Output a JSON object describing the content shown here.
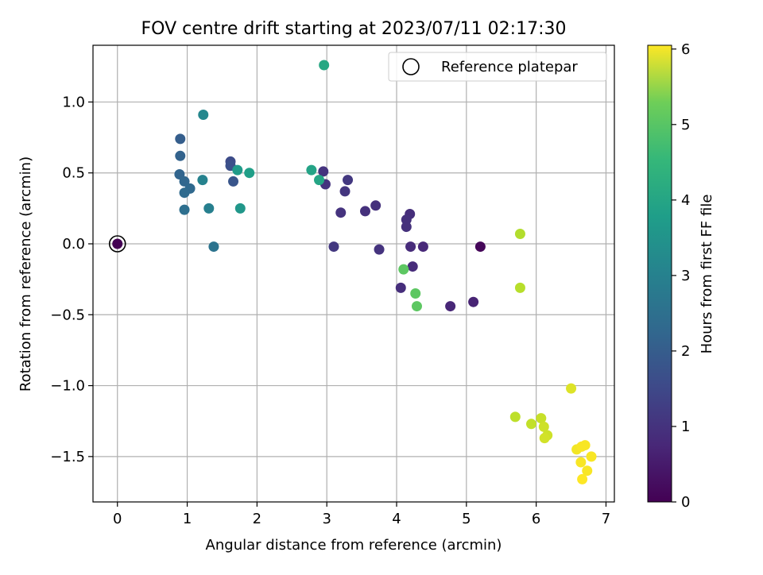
{
  "chart_data": {
    "type": "scatter",
    "title": "FOV centre drift starting at 2023/07/11 02:17:30",
    "xlabel": "Angular distance from reference (arcmin)",
    "ylabel": "Rotation from reference (arcmin)",
    "xlim": [
      -0.35,
      7.12
    ],
    "ylim": [
      -1.82,
      1.4
    ],
    "x_ticks": [
      0,
      1,
      2,
      3,
      4,
      5,
      6,
      7
    ],
    "x_tick_labels": [
      "0",
      "1",
      "2",
      "3",
      "4",
      "5",
      "6",
      "7"
    ],
    "y_ticks": [
      -1.5,
      -1.0,
      -0.5,
      0.0,
      0.5,
      1.0
    ],
    "y_tick_labels": [
      "−1.5",
      "−1.0",
      "−0.5",
      "0.0",
      "0.5",
      "1.0"
    ],
    "grid": true,
    "legend": {
      "position": "top-right",
      "entries": [
        "Reference platepar"
      ]
    },
    "reference_point": {
      "x": 0,
      "y": 0
    },
    "colorbar": {
      "label": "Hours from first FF file",
      "colormap": "viridis",
      "range": [
        0,
        6.05
      ],
      "ticks": [
        0,
        1,
        2,
        3,
        4,
        5,
        6
      ],
      "tick_labels": [
        "0",
        "1",
        "2",
        "3",
        "4",
        "5",
        "6"
      ]
    },
    "points": [
      {
        "x": 0.0,
        "y": 0.0,
        "hours": 0.0
      },
      {
        "x": 5.2,
        "y": -0.02,
        "hours": 0.1
      },
      {
        "x": 5.1,
        "y": -0.41,
        "hours": 0.6
      },
      {
        "x": 4.77,
        "y": -0.44,
        "hours": 0.65
      },
      {
        "x": 4.38,
        "y": -0.02,
        "hours": 0.7
      },
      {
        "x": 4.2,
        "y": -0.02,
        "hours": 0.75
      },
      {
        "x": 4.23,
        "y": -0.16,
        "hours": 0.75
      },
      {
        "x": 4.06,
        "y": -0.31,
        "hours": 0.8
      },
      {
        "x": 4.19,
        "y": 0.21,
        "hours": 0.8
      },
      {
        "x": 4.14,
        "y": 0.17,
        "hours": 0.85
      },
      {
        "x": 4.14,
        "y": 0.12,
        "hours": 0.85
      },
      {
        "x": 3.7,
        "y": 0.27,
        "hours": 0.85
      },
      {
        "x": 3.55,
        "y": 0.23,
        "hours": 0.85
      },
      {
        "x": 3.75,
        "y": -0.04,
        "hours": 0.9
      },
      {
        "x": 3.2,
        "y": 0.22,
        "hours": 0.9
      },
      {
        "x": 2.95,
        "y": 0.51,
        "hours": 0.9
      },
      {
        "x": 2.98,
        "y": 0.42,
        "hours": 0.9
      },
      {
        "x": 3.26,
        "y": 0.37,
        "hours": 0.95
      },
      {
        "x": 3.3,
        "y": 0.45,
        "hours": 1.0
      },
      {
        "x": 3.1,
        "y": -0.02,
        "hours": 1.0
      },
      {
        "x": 1.62,
        "y": 0.58,
        "hours": 1.4
      },
      {
        "x": 1.62,
        "y": 0.55,
        "hours": 1.5
      },
      {
        "x": 1.66,
        "y": 0.44,
        "hours": 1.6
      },
      {
        "x": 0.9,
        "y": 0.74,
        "hours": 1.8
      },
      {
        "x": 0.9,
        "y": 0.62,
        "hours": 1.9
      },
      {
        "x": 0.89,
        "y": 0.49,
        "hours": 1.95
      },
      {
        "x": 0.96,
        "y": 0.44,
        "hours": 2.0
      },
      {
        "x": 1.04,
        "y": 0.39,
        "hours": 2.05
      },
      {
        "x": 0.96,
        "y": 0.36,
        "hours": 2.1
      },
      {
        "x": 0.96,
        "y": 0.24,
        "hours": 2.2
      },
      {
        "x": 1.38,
        "y": -0.02,
        "hours": 2.3
      },
      {
        "x": 1.31,
        "y": 0.25,
        "hours": 2.6
      },
      {
        "x": 1.22,
        "y": 0.45,
        "hours": 2.7
      },
      {
        "x": 1.23,
        "y": 0.91,
        "hours": 2.8
      },
      {
        "x": 1.76,
        "y": 0.25,
        "hours": 3.2
      },
      {
        "x": 1.72,
        "y": 0.52,
        "hours": 3.3
      },
      {
        "x": 1.89,
        "y": 0.5,
        "hours": 3.4
      },
      {
        "x": 2.78,
        "y": 0.52,
        "hours": 3.5
      },
      {
        "x": 2.89,
        "y": 0.45,
        "hours": 3.55
      },
      {
        "x": 2.96,
        "y": 1.26,
        "hours": 3.6
      },
      {
        "x": 4.1,
        "y": -0.18,
        "hours": 4.5
      },
      {
        "x": 4.27,
        "y": -0.35,
        "hours": 4.5
      },
      {
        "x": 4.29,
        "y": -0.44,
        "hours": 4.5
      },
      {
        "x": 5.77,
        "y": 0.07,
        "hours": 5.35
      },
      {
        "x": 5.77,
        "y": -0.31,
        "hours": 5.4
      },
      {
        "x": 5.7,
        "y": -1.22,
        "hours": 5.45
      },
      {
        "x": 5.93,
        "y": -1.27,
        "hours": 5.5
      },
      {
        "x": 6.07,
        "y": -1.23,
        "hours": 5.55
      },
      {
        "x": 6.11,
        "y": -1.29,
        "hours": 5.6
      },
      {
        "x": 6.16,
        "y": -1.35,
        "hours": 5.6
      },
      {
        "x": 6.12,
        "y": -1.37,
        "hours": 5.65
      },
      {
        "x": 6.5,
        "y": -1.02,
        "hours": 5.75
      },
      {
        "x": 6.58,
        "y": -1.45,
        "hours": 5.95
      },
      {
        "x": 6.65,
        "y": -1.43,
        "hours": 6.0
      },
      {
        "x": 6.7,
        "y": -1.42,
        "hours": 6.0
      },
      {
        "x": 6.64,
        "y": -1.54,
        "hours": 6.0
      },
      {
        "x": 6.79,
        "y": -1.5,
        "hours": 6.0
      },
      {
        "x": 6.73,
        "y": -1.6,
        "hours": 6.0
      },
      {
        "x": 6.66,
        "y": -1.66,
        "hours": 6.05
      }
    ]
  }
}
